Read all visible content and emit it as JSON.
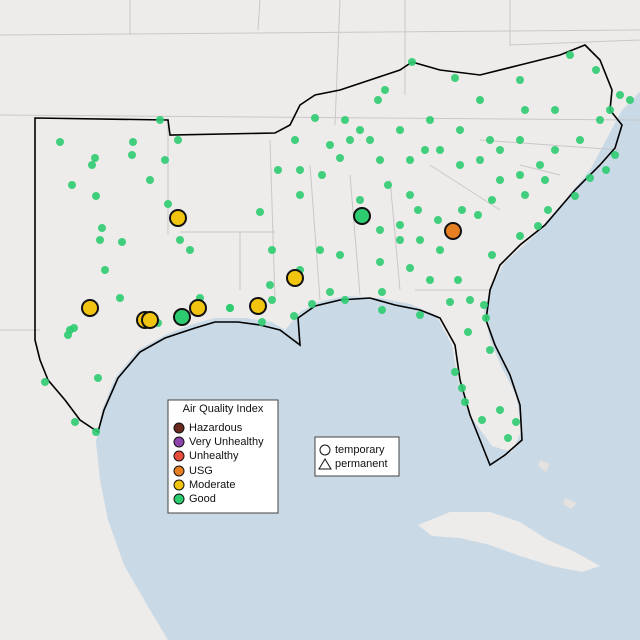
{
  "legend": {
    "title": "Air Quality Index",
    "items": [
      "Hazardous",
      "Very Unhealthy",
      "Unhealthy",
      "USG",
      "Moderate",
      "Good"
    ]
  },
  "shape_legend": {
    "items": [
      "temporary",
      "permanent"
    ]
  }
}
